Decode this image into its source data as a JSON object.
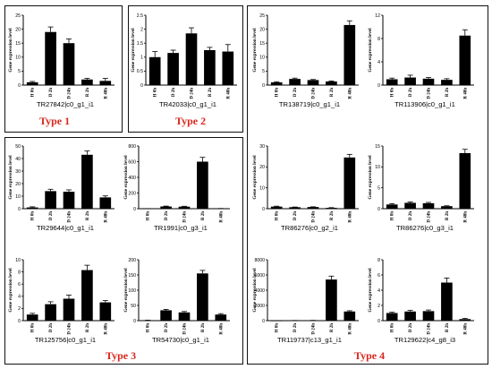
{
  "type_labels": [
    "Type 1",
    "Type 2",
    "Type 3",
    "Type 4"
  ],
  "colors": {
    "bar": "#000000",
    "axis": "#000000",
    "type_label": "#d8261c"
  },
  "chart_data": [
    {
      "type": "bar",
      "title": "TR27842|c0_g1_i1",
      "ylabel": "Gene expression level",
      "categories": [
        "H 0h",
        "D 2h",
        "D 24h",
        "R 2h",
        "R 48h"
      ],
      "values": [
        1.0,
        19.0,
        15.0,
        2.0,
        1.5
      ],
      "errors": [
        0.3,
        1.8,
        1.5,
        0.4,
        0.9
      ],
      "ylim": [
        0,
        25
      ],
      "yticks": [
        0,
        5,
        10,
        15,
        20,
        25
      ]
    },
    {
      "type": "bar",
      "title": "TR42033|c0_g1_i1",
      "ylabel": "Gene expression level",
      "categories": [
        "H 0h",
        "D 2h",
        "D 24h",
        "R 2h",
        "R 48h"
      ],
      "values": [
        1.0,
        1.15,
        1.85,
        1.25,
        1.2
      ],
      "errors": [
        0.2,
        0.1,
        0.2,
        0.1,
        0.25
      ],
      "ylim": [
        0,
        2.5
      ],
      "yticks": [
        0.0,
        0.5,
        1.0,
        1.5,
        2.0,
        2.5
      ]
    },
    {
      "type": "bar",
      "title": "TR138719|c0_g1_i1",
      "ylabel": "Gene expression level",
      "categories": [
        "H 0h",
        "D 2h",
        "D 24h",
        "R 2h",
        "R 48h"
      ],
      "values": [
        1.0,
        2.2,
        1.8,
        1.3,
        21.5
      ],
      "errors": [
        0.2,
        0.3,
        0.2,
        0.2,
        1.5
      ],
      "ylim": [
        0,
        25
      ],
      "yticks": [
        0,
        5,
        10,
        15,
        20,
        25
      ]
    },
    {
      "type": "bar",
      "title": "TR113906|c0_g1_i1",
      "ylabel": "Gene expression level",
      "categories": [
        "H 0h",
        "D 2h",
        "D 24h",
        "R 2h",
        "R 48h"
      ],
      "values": [
        1.0,
        1.3,
        1.1,
        0.9,
        8.5
      ],
      "errors": [
        0.2,
        0.4,
        0.2,
        0.2,
        1.0
      ],
      "ylim": [
        0,
        12
      ],
      "yticks": [
        0,
        4,
        8,
        12
      ]
    },
    {
      "type": "bar",
      "title": "TR29644|c0_g1_i1",
      "ylabel": "Gene expression level",
      "categories": [
        "H 0h",
        "D 2h",
        "D 24h",
        "R 2h",
        "R 48h"
      ],
      "values": [
        1.0,
        14.0,
        13.5,
        43.0,
        9.0
      ],
      "errors": [
        0.5,
        1.5,
        1.5,
        3.0,
        1.2
      ],
      "ylim": [
        0,
        50
      ],
      "yticks": [
        0,
        10,
        20,
        30,
        40,
        50
      ]
    },
    {
      "type": "bar",
      "title": "TR1991|c0_g3_i1",
      "ylabel": "Gene expression level",
      "categories": [
        "H 0h",
        "D 2h",
        "D 24h",
        "R 2h",
        "R 48h"
      ],
      "values": [
        1.0,
        28.0,
        26.0,
        600.0,
        2.0
      ],
      "errors": [
        0.5,
        5.0,
        5.0,
        55.0,
        1.0
      ],
      "ylim": [
        0,
        800
      ],
      "yticks": [
        0,
        200,
        400,
        600,
        800
      ]
    },
    {
      "type": "bar",
      "title": "TR86276|c0_g2_i1",
      "ylabel": "Gene expression level",
      "categories": [
        "H 0h",
        "D 2h",
        "D 24h",
        "R 2h",
        "R 48h"
      ],
      "values": [
        1.0,
        0.7,
        0.8,
        0.4,
        24.5
      ],
      "errors": [
        0.2,
        0.1,
        0.1,
        0.1,
        1.5
      ],
      "ylim": [
        0,
        30
      ],
      "yticks": [
        0,
        10,
        20,
        30
      ]
    },
    {
      "type": "bar",
      "title": "TR86276|c0_g3_i1",
      "ylabel": "Gene expression level",
      "categories": [
        "H 0h",
        "D 2h",
        "D 24h",
        "R 2h",
        "R 48h"
      ],
      "values": [
        1.0,
        1.4,
        1.3,
        0.6,
        13.3
      ],
      "errors": [
        0.2,
        0.2,
        0.2,
        0.1,
        0.9
      ],
      "ylim": [
        0,
        15
      ],
      "yticks": [
        0,
        5,
        10,
        15
      ]
    },
    {
      "type": "bar",
      "title": "TR125756|c0_g1_i1",
      "ylabel": "Gene expression level",
      "categories": [
        "H 0h",
        "D 2h",
        "D 24h",
        "R 2h",
        "R 48h"
      ],
      "values": [
        1.0,
        2.7,
        3.6,
        8.3,
        3.0
      ],
      "errors": [
        0.2,
        0.4,
        0.6,
        0.8,
        0.3
      ],
      "ylim": [
        0,
        10
      ],
      "yticks": [
        0,
        2,
        4,
        6,
        8,
        10
      ]
    },
    {
      "type": "bar",
      "title": "TR54730|c0_g1_i1",
      "ylabel": "Gene expression level",
      "categories": [
        "H 0h",
        "D 2h",
        "D 24h",
        "R 2h",
        "R 48h"
      ],
      "values": [
        1.0,
        34.0,
        27.0,
        155.0,
        20.0
      ],
      "errors": [
        0.5,
        3.0,
        3.0,
        10.0,
        3.0
      ],
      "ylim": [
        0,
        200
      ],
      "yticks": [
        0,
        50,
        100,
        150,
        200
      ]
    },
    {
      "type": "bar",
      "title": "TR119737|c13_g1_i1",
      "ylabel": "Gene expression level",
      "categories": [
        "H 0h",
        "D 2h",
        "D 24h",
        "R 2h",
        "R 48h"
      ],
      "values": [
        1.0,
        20.0,
        30.0,
        5400.0,
        1200.0
      ],
      "errors": [
        1.0,
        5.0,
        5.0,
        450.0,
        100.0
      ],
      "ylim": [
        0,
        8000
      ],
      "yticks": [
        0,
        2000,
        4000,
        6000,
        8000
      ]
    },
    {
      "type": "bar",
      "title": "TR129622|c4_g8_i3",
      "ylabel": "Gene expression level",
      "categories": [
        "H 0h",
        "D 2h",
        "D 24h",
        "R 2h",
        "R 48h"
      ],
      "values": [
        1.0,
        1.2,
        1.25,
        5.0,
        0.2
      ],
      "errors": [
        0.1,
        0.15,
        0.15,
        0.6,
        0.1
      ],
      "ylim": [
        0,
        8
      ],
      "yticks": [
        0,
        2,
        4,
        6,
        8
      ]
    }
  ]
}
